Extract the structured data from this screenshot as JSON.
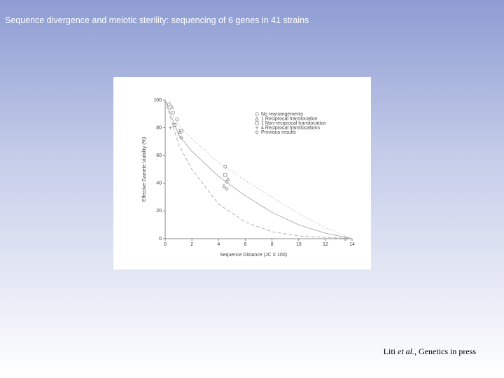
{
  "slide": {
    "title": "Sequence divergence and meiotic sterility: sequencing of 6 genes in 41 strains",
    "citation": [
      "Liti ",
      "et al.",
      ", Genetics in press"
    ]
  },
  "chart_data": {
    "type": "scatter",
    "xlabel": "Sequence Distance (JC X 100)",
    "ylabel": "Effective Gamete Viability (%)",
    "xlim": [
      0,
      14
    ],
    "xticks": [
      0,
      2,
      4,
      6,
      8,
      10,
      12,
      14
    ],
    "ylim": [
      0,
      100
    ],
    "yticks": [
      0,
      20,
      40,
      60,
      80,
      100
    ],
    "legend": "upper right",
    "series": [
      {
        "name": "No rearrangements",
        "color": "#888888",
        "marker": "circle",
        "x": [
          0.3,
          0.6,
          0.9,
          4.5,
          4.6,
          13.5
        ],
        "values": [
          97,
          91,
          86,
          52,
          41,
          0
        ]
      },
      {
        "name": "1 Reciprocal translocation",
        "color": "#888888",
        "marker": "triangle",
        "x": [
          0.5,
          1.1,
          4.4,
          4.7
        ],
        "values": [
          95,
          77,
          38,
          43
        ]
      },
      {
        "name": "1 Non-reciprocal translocation",
        "color": "#888888",
        "marker": "square",
        "x": [
          0.7,
          1.2,
          4.5
        ],
        "values": [
          82,
          78,
          46
        ]
      },
      {
        "name": "4 Reciprocal translocations",
        "color": "#888888",
        "marker": "plus",
        "x": [
          0.4
        ],
        "values": [
          80
        ]
      },
      {
        "name": "Previous results",
        "color": "#888888",
        "marker": "diamond",
        "x": [
          1.2,
          4.6
        ],
        "values": [
          73,
          36
        ]
      }
    ],
    "curves": [
      {
        "style": "dotted",
        "color": "#aaaaaa",
        "x": [
          0,
          1,
          2,
          4,
          6,
          8,
          10,
          12,
          14
        ],
        "values": [
          100,
          82,
          72,
          55,
          42,
          30,
          18,
          8,
          0
        ]
      },
      {
        "style": "solid",
        "color": "#aaaaaa",
        "x": [
          0,
          1,
          2,
          4,
          6,
          8,
          10,
          12,
          14
        ],
        "values": [
          100,
          75,
          63,
          45,
          31,
          19,
          10,
          4,
          0
        ]
      },
      {
        "style": "dashed",
        "color": "#aaaaaa",
        "x": [
          0,
          1,
          2,
          4,
          6,
          8,
          10,
          12,
          14
        ],
        "values": [
          100,
          68,
          50,
          25,
          12,
          5,
          2,
          1,
          0
        ]
      }
    ]
  }
}
